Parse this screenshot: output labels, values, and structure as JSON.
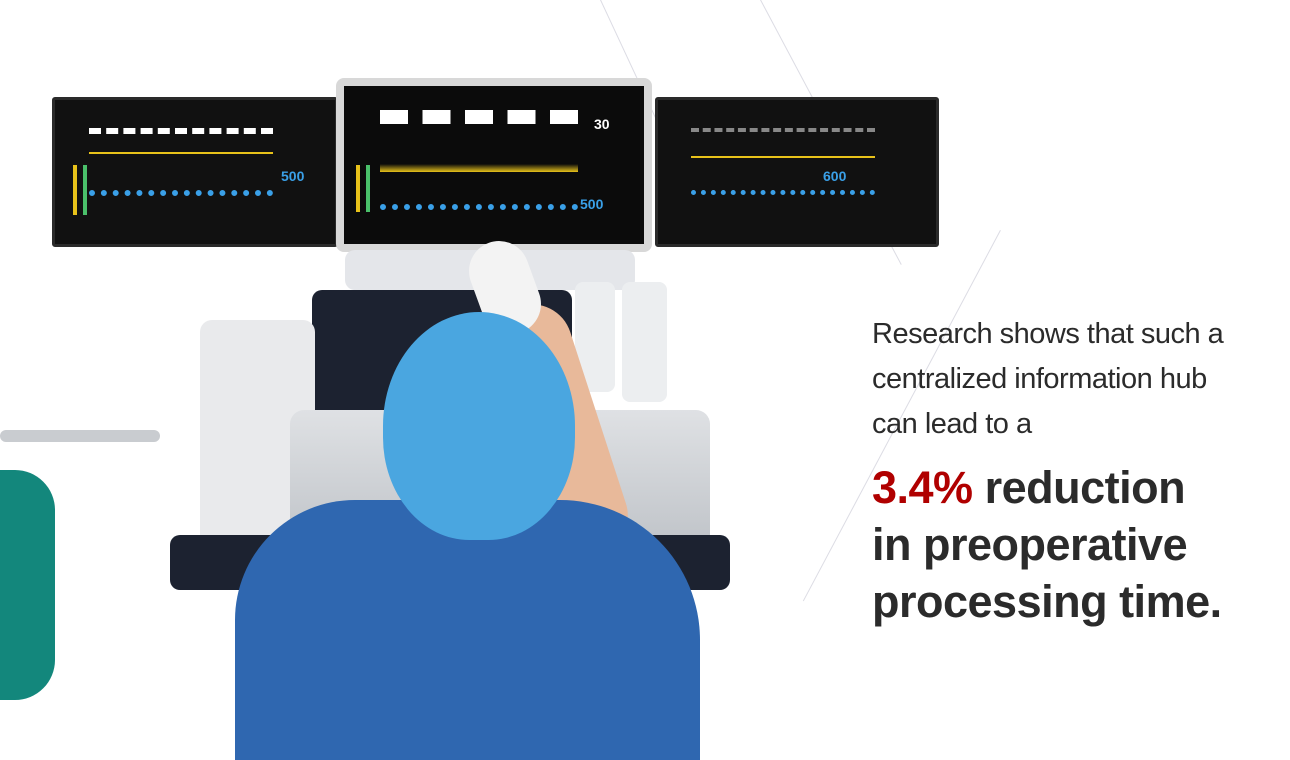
{
  "caption": {
    "lead_text": "Research shows that such a centralized information hub can lead to a",
    "highlight": "3.4%",
    "headline_rest_line1": " reduction",
    "headline_line2": "in preoperative",
    "headline_line3": "processing time."
  },
  "monitors": {
    "left": {
      "readout": "500"
    },
    "center": {
      "readout_top": "30",
      "readout_bottom": "500"
    },
    "right": {
      "readout": "600"
    }
  },
  "colors": {
    "accent": "#b00000",
    "text": "#2b2b2b",
    "waveform_yellow": "#e8c21a",
    "waveform_blue": "#3aa0e8",
    "scrubs_blue": "#2f67b0",
    "cap_blue": "#4aa6e0"
  }
}
